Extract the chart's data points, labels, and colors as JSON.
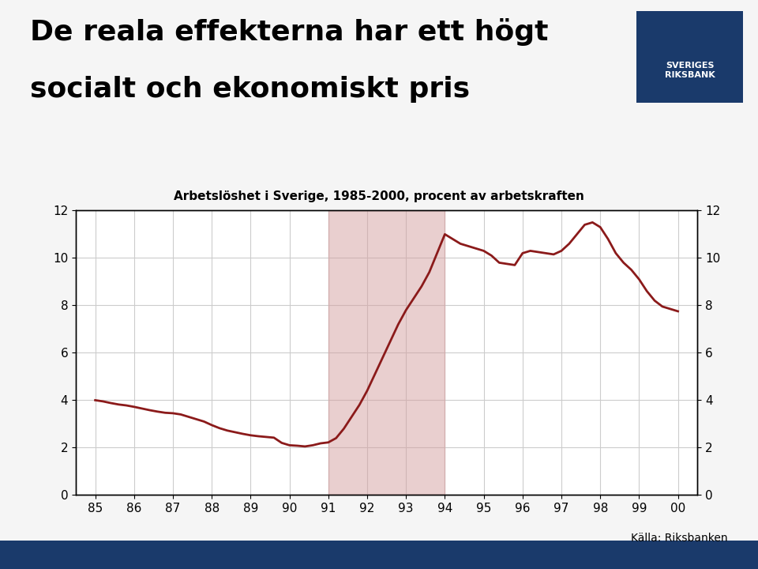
{
  "title_line1": "De reala effekterna har ett högt",
  "title_line2": "socialt och ekonomiskt pris",
  "chart_title": "Arbetslöshet i Sverige, 1985-2000, procent av arbetskraften",
  "source": "Källa: Riksbanken",
  "background_color": "#f5f5f5",
  "plot_bg_color": "#ffffff",
  "title_color": "#000000",
  "line_color": "#8b1a1a",
  "shade_color": "#d4a0a0",
  "shade_alpha": 0.5,
  "shade_xmin": 91.0,
  "shade_xmax": 94.0,
  "ylim": [
    0,
    12
  ],
  "xlim": [
    84.5,
    100.5
  ],
  "yticks": [
    0,
    2,
    4,
    6,
    8,
    10,
    12
  ],
  "xticks": [
    85,
    86,
    87,
    88,
    89,
    90,
    91,
    92,
    93,
    94,
    95,
    96,
    97,
    98,
    99,
    100
  ],
  "xticklabels": [
    "85",
    "86",
    "87",
    "88",
    "89",
    "90",
    "91",
    "92",
    "93",
    "94",
    "95",
    "96",
    "97",
    "98",
    "99",
    "00"
  ],
  "navbar_color": "#1a3a6b",
  "x": [
    85.0,
    85.2,
    85.4,
    85.6,
    85.8,
    86.0,
    86.2,
    86.4,
    86.6,
    86.8,
    87.0,
    87.2,
    87.4,
    87.6,
    87.8,
    88.0,
    88.2,
    88.4,
    88.6,
    88.8,
    89.0,
    89.2,
    89.4,
    89.6,
    89.8,
    90.0,
    90.2,
    90.4,
    90.6,
    90.8,
    91.0,
    91.2,
    91.4,
    91.6,
    91.8,
    92.0,
    92.2,
    92.4,
    92.6,
    92.8,
    93.0,
    93.2,
    93.4,
    93.6,
    93.8,
    94.0,
    94.2,
    94.4,
    94.6,
    94.8,
    95.0,
    95.2,
    95.4,
    95.6,
    95.8,
    96.0,
    96.2,
    96.4,
    96.6,
    96.8,
    97.0,
    97.2,
    97.4,
    97.6,
    97.8,
    98.0,
    98.2,
    98.4,
    98.6,
    98.8,
    99.0,
    99.2,
    99.4,
    99.6,
    99.8,
    100.0
  ],
  "y": [
    4.0,
    3.95,
    3.88,
    3.82,
    3.78,
    3.72,
    3.65,
    3.58,
    3.52,
    3.47,
    3.45,
    3.4,
    3.3,
    3.2,
    3.1,
    2.95,
    2.82,
    2.72,
    2.65,
    2.58,
    2.52,
    2.48,
    2.45,
    2.42,
    2.2,
    2.1,
    2.08,
    2.05,
    2.1,
    2.18,
    2.22,
    2.4,
    2.8,
    3.3,
    3.8,
    4.4,
    5.1,
    5.8,
    6.5,
    7.2,
    7.8,
    8.3,
    8.8,
    9.4,
    10.2,
    11.0,
    10.8,
    10.6,
    10.5,
    10.4,
    10.3,
    10.1,
    9.8,
    9.75,
    9.7,
    10.2,
    10.3,
    10.25,
    10.2,
    10.15,
    10.3,
    10.6,
    11.0,
    11.4,
    11.5,
    11.3,
    10.8,
    10.2,
    9.8,
    9.5,
    9.1,
    8.6,
    8.2,
    7.95,
    7.85,
    7.75
  ]
}
